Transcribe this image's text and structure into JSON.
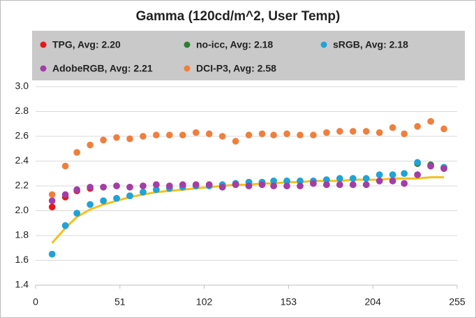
{
  "chart_data": {
    "type": "scatter",
    "title": "Gamma (120cd/m^2, User Temp)",
    "x": [
      10,
      18,
      25,
      33,
      41,
      49,
      57,
      65,
      73,
      81,
      89,
      97,
      105,
      113,
      121,
      129,
      137,
      144,
      152,
      160,
      168,
      176,
      184,
      192,
      200,
      208,
      216,
      223,
      231,
      239,
      247
    ],
    "series": [
      {
        "name": "TPG, Avg: 2.20",
        "color": "#e8161a",
        "values": [
          2.03,
          2.11,
          2.16,
          2.18,
          2.19,
          2.2,
          2.19,
          2.2,
          2.21,
          2.2,
          2.21,
          2.21,
          2.21,
          2.19,
          2.21,
          2.2,
          2.21,
          2.2,
          2.2,
          2.2,
          2.22,
          2.21,
          2.21,
          2.21,
          2.21,
          2.24,
          2.24,
          2.22,
          2.29,
          2.36,
          2.34
        ]
      },
      {
        "name": "no-icc, Avg: 2.18",
        "color": "#2e7d32",
        "values": [
          1.65,
          1.88,
          1.98,
          2.05,
          2.08,
          2.1,
          2.12,
          2.15,
          2.17,
          2.18,
          2.19,
          2.2,
          2.2,
          2.21,
          2.22,
          2.23,
          2.23,
          2.24,
          2.24,
          2.24,
          2.24,
          2.25,
          2.26,
          2.26,
          2.26,
          2.29,
          2.29,
          2.3,
          2.38,
          2.37,
          2.35
        ]
      },
      {
        "name": "sRGB, Avg: 2.18",
        "color": "#1fa3d8",
        "values": [
          1.65,
          1.88,
          1.98,
          2.05,
          2.08,
          2.1,
          2.12,
          2.15,
          2.17,
          2.18,
          2.19,
          2.2,
          2.2,
          2.21,
          2.22,
          2.23,
          2.23,
          2.24,
          2.24,
          2.24,
          2.24,
          2.25,
          2.26,
          2.26,
          2.26,
          2.29,
          2.29,
          2.3,
          2.39,
          2.36,
          2.35
        ]
      },
      {
        "name": "AdobeRGB, Avg: 2.21",
        "color": "#a23ea8",
        "values": [
          2.08,
          2.13,
          2.17,
          2.19,
          2.19,
          2.2,
          2.19,
          2.2,
          2.21,
          2.2,
          2.21,
          2.21,
          2.21,
          2.19,
          2.21,
          2.2,
          2.21,
          2.2,
          2.2,
          2.2,
          2.22,
          2.21,
          2.21,
          2.21,
          2.21,
          2.24,
          2.24,
          2.22,
          2.29,
          2.36,
          2.34
        ]
      },
      {
        "name": "DCI-P3, Avg: 2.58",
        "color": "#ef7f3c",
        "values": [
          2.13,
          2.36,
          2.47,
          2.53,
          2.57,
          2.59,
          2.58,
          2.6,
          2.61,
          2.61,
          2.61,
          2.63,
          2.62,
          2.6,
          2.56,
          2.61,
          2.62,
          2.61,
          2.62,
          2.61,
          2.61,
          2.63,
          2.64,
          2.64,
          2.64,
          2.63,
          2.67,
          2.62,
          2.68,
          2.72,
          2.66
        ]
      }
    ],
    "fit": {
      "color": "#f5c01a",
      "values": [
        1.74,
        1.86,
        1.95,
        2.01,
        2.05,
        2.08,
        2.11,
        2.13,
        2.15,
        2.16,
        2.17,
        2.18,
        2.19,
        2.2,
        2.21,
        2.21,
        2.22,
        2.22,
        2.23,
        2.23,
        2.24,
        2.24,
        2.24,
        2.25,
        2.25,
        2.25,
        2.26,
        2.26,
        2.26,
        2.27,
        2.27
      ]
    },
    "xlim": [
      0,
      255
    ],
    "xticks": [
      0,
      51,
      102,
      153,
      204,
      255
    ],
    "ylim": [
      1.4,
      3.0
    ],
    "yticks": [
      1.4,
      1.6,
      1.8,
      {
        "value": 2.0,
        "label": "2.0"
      },
      2.2,
      2.4,
      2.6,
      2.8,
      {
        "value": 3.0,
        "label": "3.0"
      }
    ],
    "grid": true,
    "legend": "top"
  }
}
